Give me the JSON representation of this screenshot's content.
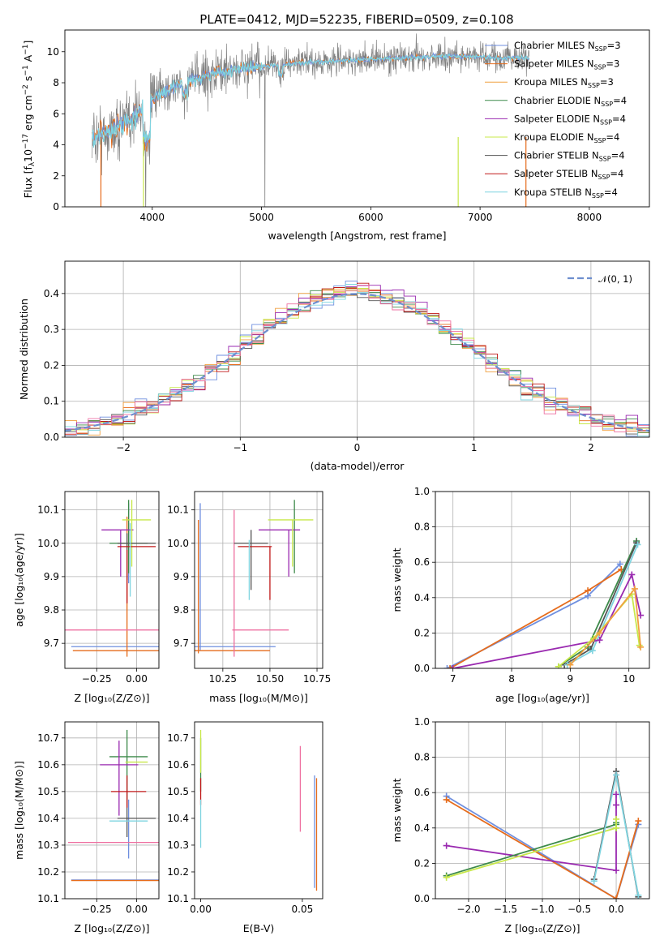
{
  "figure": {
    "title": "PLATE=0412, MJD=52235, FIBERID=0509, z=0.108",
    "colors": {
      "blue": "#6f8fdf",
      "orange": "#e66c1c",
      "peach": "#f0a040",
      "green": "#3d8a4a",
      "purple": "#9a2ab0",
      "lime": "#c8e84a",
      "gray": "#555555",
      "red": "#c01818",
      "cyan": "#7fd4e0",
      "pink": "#ee6fa0",
      "normal": "#6e8fcf"
    }
  },
  "chart_data": [
    {
      "id": "spectrum",
      "type": "line",
      "xlabel": "wavelength [Angstrom, rest frame]",
      "ylabel": "Flux [f_λ10^{-17} erg cm^{-2} s^{-1} A^{-1}]",
      "ylabel_parts": {
        "a": "Flux [f",
        "b": "λ",
        "c": "10",
        "d": "−17",
        "e": " erg cm",
        "f": "−2",
        "g": " s",
        "h": "−1",
        "i": " A",
        "j": "−1",
        "k": "]"
      },
      "xlim": [
        3200,
        8550
      ],
      "ylim": [
        0,
        11.4
      ],
      "xticks": [
        "4000",
        "5000",
        "6000",
        "7000",
        "8000"
      ],
      "xtick_values": [
        4000,
        5000,
        6000,
        7000,
        8000
      ],
      "yticks": [
        "0",
        "2",
        "4",
        "6",
        "8",
        "10"
      ],
      "ytick_values": [
        0,
        2,
        4,
        6,
        8,
        10
      ],
      "data_wavelength_range": [
        3450,
        7450
      ],
      "continuum": {
        "wavelength": [
          3450,
          3600,
          3800,
          4000,
          4200,
          4500,
          4800,
          5100,
          5400,
          5700,
          6000,
          6300,
          6600,
          6900,
          7200,
          7450
        ],
        "flux": [
          4.5,
          4.8,
          5.6,
          6.9,
          7.8,
          8.5,
          8.9,
          9.1,
          9.3,
          9.4,
          9.5,
          9.6,
          9.7,
          9.7,
          9.6,
          9.6
        ]
      },
      "legend": [
        {
          "name": "Chabrier MILES",
          "sub": "SSP",
          "n": "=3",
          "color_key": "blue"
        },
        {
          "name": "Salpeter MILES",
          "sub": "SSP",
          "n": "=3",
          "color_key": "orange"
        },
        {
          "name": "Kroupa MILES",
          "sub": "SSP",
          "n": "=3",
          "color_key": "peach"
        },
        {
          "name": "Chabrier ELODIE",
          "sub": "SSP",
          "n": "=4",
          "color_key": "green"
        },
        {
          "name": "Salpeter ELODIE",
          "sub": "SSP",
          "n": "=4",
          "color_key": "purple"
        },
        {
          "name": "Kroupa ELODIE",
          "sub": "SSP",
          "n": "=4",
          "color_key": "lime"
        },
        {
          "name": "Chabrier STELIB",
          "sub": "SSP",
          "n": "=4",
          "color_key": "gray"
        },
        {
          "name": "Salpeter STELIB",
          "sub": "SSP",
          "n": "=4",
          "color_key": "red"
        },
        {
          "name": "Kroupa STELIB",
          "sub": "SSP",
          "n": "=4",
          "color_key": "cyan"
        }
      ]
    },
    {
      "id": "residuals",
      "type": "histogram",
      "xlabel": "(data-model)/error",
      "ylabel": "Normed distribution",
      "xlim": [
        -2.5,
        2.5
      ],
      "ylim": [
        0,
        0.49
      ],
      "xticks": [
        "−2",
        "−1",
        "0",
        "1",
        "2"
      ],
      "xtick_values": [
        -2,
        -1,
        0,
        1,
        2
      ],
      "yticks": [
        "0.0",
        "0.1",
        "0.2",
        "0.3",
        "0.4"
      ],
      "ytick_values": [
        0,
        0.1,
        0.2,
        0.3,
        0.4
      ],
      "bin_width": 0.1,
      "legend": [
        {
          "name": "𝒩(0, 1)",
          "color_key": "normal"
        }
      ],
      "series_color_keys": [
        "blue",
        "orange",
        "peach",
        "green",
        "purple",
        "lime",
        "gray",
        "red",
        "cyan",
        "pink"
      ]
    },
    {
      "id": "age-vs-Z",
      "type": "errorbar",
      "xlabel": "Z [log₁₀(Z/Z⊙)]",
      "ylabel": "age  [log₁₀(age/yr)]",
      "xlim": [
        -0.45,
        0.14
      ],
      "ylim": [
        9.625,
        10.155
      ],
      "xticks": [
        "−0.25",
        "0.00"
      ],
      "xtick_values": [
        -0.25,
        0
      ],
      "yticks": [
        "9.7",
        "9.8",
        "9.9",
        "10.0",
        "10.1"
      ],
      "ytick_values": [
        9.7,
        9.8,
        9.9,
        10.0,
        10.1
      ],
      "points": [
        {
          "x": -0.05,
          "xerr": 0.36,
          "y": 9.69,
          "yerr": 0.0,
          "c": "blue"
        },
        {
          "x": -0.05,
          "xerr": 0.0,
          "y": 10.0,
          "yerr": 0.12,
          "c": "blue"
        },
        {
          "x": -0.05,
          "xerr": 0.35,
          "y": 9.678,
          "yerr": 0.0,
          "c": "orange"
        },
        {
          "x": -0.06,
          "xerr": 0.0,
          "y": 9.87,
          "yerr": 0.21,
          "c": "orange"
        },
        {
          "x": -0.07,
          "xerr": 0.38,
          "y": 9.74,
          "yerr": 0.0,
          "c": "pink"
        },
        {
          "x": -0.05,
          "xerr": 0.12,
          "y": 10.0,
          "yerr": 0.0,
          "c": "green"
        },
        {
          "x": -0.05,
          "xerr": 0.0,
          "y": 10.02,
          "yerr": 0.11,
          "c": "green"
        },
        {
          "x": -0.12,
          "xerr": 0.1,
          "y": 10.04,
          "yerr": 0.0,
          "c": "purple"
        },
        {
          "x": -0.1,
          "xerr": 0.0,
          "y": 9.97,
          "yerr": 0.07,
          "c": "purple"
        },
        {
          "x": 0.0,
          "xerr": 0.09,
          "y": 10.07,
          "yerr": 0.0,
          "c": "lime"
        },
        {
          "x": -0.03,
          "xerr": 0.0,
          "y": 10.03,
          "yerr": 0.1,
          "c": "lime"
        },
        {
          "x": 0.0,
          "xerr": 0.12,
          "y": 10.0,
          "yerr": 0.0,
          "c": "gray"
        },
        {
          "x": -0.06,
          "xerr": 0.0,
          "y": 9.96,
          "yerr": 0.07,
          "c": "gray"
        },
        {
          "x": 0.0,
          "xerr": 0.12,
          "y": 9.99,
          "yerr": 0.0,
          "c": "red"
        },
        {
          "x": -0.06,
          "xerr": 0.0,
          "y": 9.9,
          "yerr": 0.08,
          "c": "red"
        },
        {
          "x": -0.04,
          "xerr": 0.0,
          "y": 9.95,
          "yerr": 0.11,
          "c": "cyan"
        }
      ]
    },
    {
      "id": "age-vs-mass",
      "type": "errorbar",
      "xlabel": "mass [log₁₀(M/M⊙)]",
      "ylabel": "",
      "xlim": [
        10.1,
        10.78
      ],
      "ylim": [
        9.625,
        10.155
      ],
      "xticks": [
        "10.25",
        "10.50",
        "10.75"
      ],
      "xtick_values": [
        10.25,
        10.5,
        10.75
      ],
      "yticks": [
        "9.7",
        "9.8",
        "9.9",
        "10.0",
        "10.1"
      ],
      "ytick_values": [
        9.7,
        9.8,
        9.9,
        10.0,
        10.1
      ],
      "points": [
        {
          "x": 10.31,
          "xerr": 0.22,
          "y": 9.69,
          "yerr": 0.0,
          "c": "blue"
        },
        {
          "x": 10.13,
          "xerr": 0.0,
          "y": 9.9,
          "yerr": 0.22,
          "c": "blue"
        },
        {
          "x": 10.3,
          "xerr": 0.2,
          "y": 9.678,
          "yerr": 0.0,
          "c": "orange"
        },
        {
          "x": 10.12,
          "xerr": 0.0,
          "y": 9.87,
          "yerr": 0.2,
          "c": "orange"
        },
        {
          "x": 10.45,
          "xerr": 0.15,
          "y": 9.74,
          "yerr": 0.0,
          "c": "pink"
        },
        {
          "x": 10.31,
          "xerr": 0.0,
          "y": 9.88,
          "yerr": 0.22,
          "c": "pink"
        },
        {
          "x": 10.63,
          "xerr": 0.0,
          "y": 10.02,
          "yerr": 0.11,
          "c": "green"
        },
        {
          "x": 10.55,
          "xerr": 0.11,
          "y": 10.04,
          "yerr": 0.0,
          "c": "purple"
        },
        {
          "x": 10.6,
          "xerr": 0.0,
          "y": 9.97,
          "yerr": 0.07,
          "c": "purple"
        },
        {
          "x": 10.61,
          "xerr": 0.12,
          "y": 10.07,
          "yerr": 0.0,
          "c": "lime"
        },
        {
          "x": 10.62,
          "xerr": 0.0,
          "y": 10.0,
          "yerr": 0.07,
          "c": "lime"
        },
        {
          "x": 10.4,
          "xerr": 0.09,
          "y": 10.0,
          "yerr": 0.0,
          "c": "gray"
        },
        {
          "x": 10.4,
          "xerr": 0.0,
          "y": 9.95,
          "yerr": 0.09,
          "c": "gray"
        },
        {
          "x": 10.42,
          "xerr": 0.09,
          "y": 9.99,
          "yerr": 0.0,
          "c": "red"
        },
        {
          "x": 10.5,
          "xerr": 0.0,
          "y": 9.91,
          "yerr": 0.08,
          "c": "red"
        },
        {
          "x": 10.39,
          "xerr": 0.0,
          "y": 9.92,
          "yerr": 0.09,
          "c": "cyan"
        }
      ]
    },
    {
      "id": "weight-vs-age",
      "type": "line",
      "xlabel": "age  [log₁₀(age/yr)]",
      "ylabel": "mass weight",
      "xlim": [
        6.7,
        10.35
      ],
      "ylim": [
        0,
        1.0
      ],
      "xticks": [
        "7",
        "8",
        "9",
        "10"
      ],
      "xtick_values": [
        7,
        8,
        9,
        10
      ],
      "yticks": [
        "0.0",
        "0.2",
        "0.4",
        "0.6",
        "0.8",
        "1.0"
      ],
      "ytick_values": [
        0,
        0.2,
        0.4,
        0.6,
        0.8,
        1.0
      ],
      "series": [
        {
          "c": "blue",
          "x": [
            6.9,
            9.3,
            9.85
          ],
          "y": [
            0.0,
            0.41,
            0.59
          ]
        },
        {
          "c": "orange",
          "x": [
            6.95,
            9.3,
            9.87
          ],
          "y": [
            0.0,
            0.44,
            0.56
          ]
        },
        {
          "c": "green",
          "x": [
            8.8,
            9.3,
            10.13
          ],
          "y": [
            0.01,
            0.12,
            0.72
          ]
        },
        {
          "c": "gray",
          "x": [
            8.9,
            9.35,
            10.13
          ],
          "y": [
            0.02,
            0.11,
            0.71
          ]
        },
        {
          "c": "cyan",
          "x": [
            8.95,
            9.38,
            10.15
          ],
          "y": [
            0.02,
            0.1,
            0.7
          ]
        },
        {
          "c": "purple",
          "x": [
            7.0,
            9.5,
            10.05,
            10.2
          ],
          "y": [
            0.0,
            0.16,
            0.53,
            0.3
          ]
        },
        {
          "c": "lime",
          "x": [
            8.8,
            9.4,
            10.05,
            10.18
          ],
          "y": [
            0.01,
            0.17,
            0.42,
            0.13
          ]
        },
        {
          "c": "peach",
          "x": [
            9.0,
            9.5,
            10.1,
            10.2
          ],
          "y": [
            0.02,
            0.2,
            0.45,
            0.12
          ]
        }
      ]
    },
    {
      "id": "mass-vs-Z",
      "type": "errorbar",
      "xlabel": "Z [log₁₀(Z/Z⊙)]",
      "ylabel": "mass [log₁₀(M/M⊙)]",
      "xlim": [
        -0.45,
        0.14
      ],
      "ylim": [
        10.1,
        10.76
      ],
      "xticks": [
        "−0.25",
        "0.00"
      ],
      "xtick_values": [
        -0.25,
        0
      ],
      "yticks": [
        "10.1",
        "10.2",
        "10.3",
        "10.4",
        "10.5",
        "10.6",
        "10.7"
      ],
      "ytick_values": [
        10.1,
        10.2,
        10.3,
        10.4,
        10.5,
        10.6,
        10.7
      ],
      "points": [
        {
          "x": -0.05,
          "xerr": 0.36,
          "y": 10.17,
          "yerr": 0.0,
          "c": "blue"
        },
        {
          "x": -0.05,
          "xerr": 0.0,
          "y": 10.36,
          "yerr": 0.11,
          "c": "blue"
        },
        {
          "x": -0.05,
          "xerr": 0.36,
          "y": 10.168,
          "yerr": 0.0,
          "c": "orange"
        },
        {
          "x": -0.05,
          "xerr": 0.38,
          "y": 10.31,
          "yerr": 0.0,
          "c": "pink"
        },
        {
          "x": -0.05,
          "xerr": 0.12,
          "y": 10.63,
          "yerr": 0.0,
          "c": "green"
        },
        {
          "x": -0.06,
          "xerr": 0.0,
          "y": 10.6,
          "yerr": 0.13,
          "c": "green"
        },
        {
          "x": -0.11,
          "xerr": 0.12,
          "y": 10.6,
          "yerr": 0.0,
          "c": "purple"
        },
        {
          "x": -0.11,
          "xerr": 0.0,
          "y": 10.55,
          "yerr": 0.14,
          "c": "purple"
        },
        {
          "x": 0.0,
          "xerr": 0.07,
          "y": 10.61,
          "yerr": 0.0,
          "c": "lime"
        },
        {
          "x": 0.0,
          "xerr": 0.12,
          "y": 10.4,
          "yerr": 0.0,
          "c": "gray"
        },
        {
          "x": -0.06,
          "xerr": 0.0,
          "y": 10.4,
          "yerr": 0.07,
          "c": "gray"
        },
        {
          "x": -0.05,
          "xerr": 0.11,
          "y": 10.5,
          "yerr": 0.0,
          "c": "red"
        },
        {
          "x": -0.06,
          "xerr": 0.0,
          "y": 10.5,
          "yerr": 0.06,
          "c": "red"
        },
        {
          "x": -0.05,
          "xerr": 0.12,
          "y": 10.39,
          "yerr": 0.0,
          "c": "cyan"
        }
      ]
    },
    {
      "id": "mass-vs-ebv",
      "type": "errorbar",
      "xlabel": "E(B-V)",
      "ylabel": "",
      "xlim": [
        -0.003,
        0.06
      ],
      "ylim": [
        10.1,
        10.76
      ],
      "xticks": [
        "0.00",
        "0.05"
      ],
      "xtick_values": [
        0,
        0.05
      ],
      "yticks": [
        "10.1",
        "10.2",
        "10.3",
        "10.4",
        "10.5",
        "10.6",
        "10.7"
      ],
      "ytick_values": [
        10.1,
        10.2,
        10.3,
        10.4,
        10.5,
        10.6,
        10.7
      ],
      "points": [
        {
          "x": 0.0,
          "xerr": 0.0,
          "y": 10.6,
          "yerr": 0.1,
          "c": "green"
        },
        {
          "x": 0.0,
          "xerr": 0.0,
          "y": 10.65,
          "yerr": 0.08,
          "c": "lime"
        },
        {
          "x": 0.0,
          "xerr": 0.0,
          "y": 10.5,
          "yerr": 0.05,
          "c": "red"
        },
        {
          "x": 0.0,
          "xerr": 0.0,
          "y": 10.38,
          "yerr": 0.09,
          "c": "cyan"
        },
        {
          "x": 0.049,
          "xerr": 0.0,
          "y": 10.51,
          "yerr": 0.16,
          "c": "pink"
        },
        {
          "x": 0.056,
          "xerr": 0.0,
          "y": 10.35,
          "yerr": 0.21,
          "c": "blue"
        },
        {
          "x": 0.057,
          "xerr": 0.0,
          "y": 10.34,
          "yerr": 0.21,
          "c": "orange"
        }
      ]
    },
    {
      "id": "weight-vs-Z",
      "type": "line",
      "xlabel": "Z [log₁₀(Z/Z⊙)]",
      "ylabel": "mass weight",
      "xlim": [
        -2.45,
        0.45
      ],
      "ylim": [
        0,
        1.0
      ],
      "xticks": [
        "−2.0",
        "−1.5",
        "−1.0",
        "−0.5",
        "0.0"
      ],
      "xtick_values": [
        -2.0,
        -1.5,
        -1.0,
        -0.5,
        0.0
      ],
      "yticks": [
        "0.0",
        "0.2",
        "0.4",
        "0.6",
        "0.8",
        "1.0"
      ],
      "ytick_values": [
        0,
        0.2,
        0.4,
        0.6,
        0.8,
        1.0
      ],
      "series": [
        {
          "c": "blue",
          "x": [
            -2.3,
            0.0,
            0.3
          ],
          "y": [
            0.58,
            0.0,
            0.42
          ]
        },
        {
          "c": "orange",
          "x": [
            -2.3,
            0.0,
            0.3
          ],
          "y": [
            0.56,
            0.0,
            0.44
          ]
        },
        {
          "c": "purple",
          "x": [
            -2.3,
            0.0,
            0.0,
            0.0
          ],
          "y": [
            0.3,
            0.16,
            0.53,
            0.59
          ]
        },
        {
          "c": "green",
          "x": [
            -2.3,
            0.0,
            0.0,
            0.0
          ],
          "y": [
            0.13,
            0.42,
            0.4,
            0.43
          ]
        },
        {
          "c": "lime",
          "x": [
            -2.3,
            0.0,
            0.0
          ],
          "y": [
            0.12,
            0.4,
            0.45
          ]
        },
        {
          "c": "gray",
          "x": [
            -0.3,
            0.0,
            0.3
          ],
          "y": [
            0.11,
            0.72,
            0.01
          ]
        },
        {
          "c": "cyan",
          "x": [
            -0.3,
            0.0,
            0.3
          ],
          "y": [
            0.1,
            0.7,
            0.02
          ]
        }
      ]
    }
  ]
}
